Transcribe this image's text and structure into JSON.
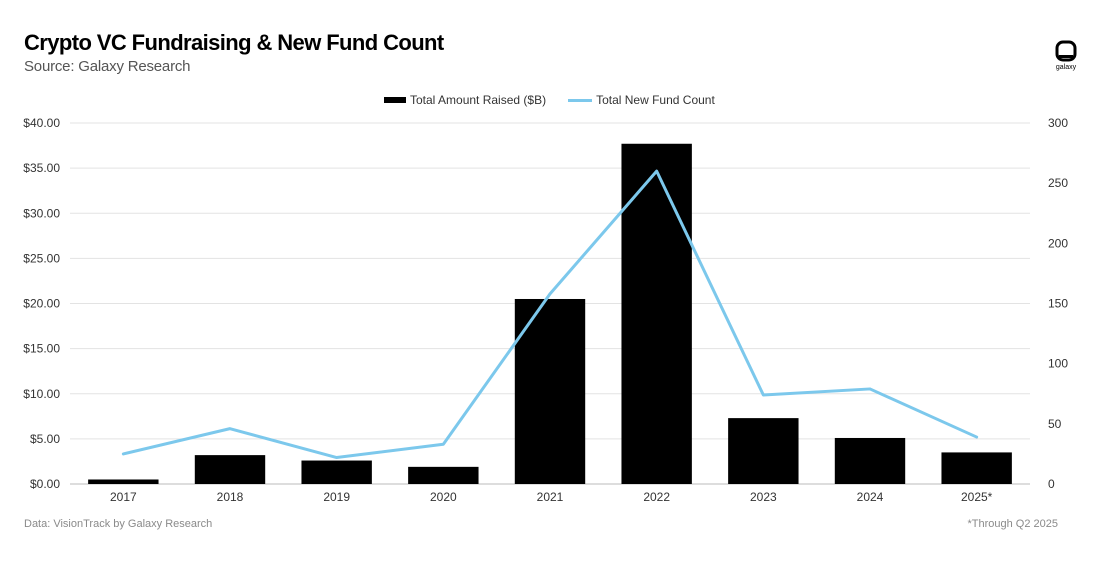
{
  "header": {
    "title": "Crypto VC Fundraising & New Fund Count",
    "subtitle": "Source: Galaxy Research",
    "logo_text": "galaxy"
  },
  "colors": {
    "bar": "#000000",
    "line": "#7cc8ec",
    "grid": "#e3e3e3"
  },
  "chart_data": {
    "type": "bar",
    "categories": [
      "2017",
      "2018",
      "2019",
      "2020",
      "2021",
      "2022",
      "2023",
      "2024",
      "2025*"
    ],
    "series": [
      {
        "name": "Total Amount Raised ($B)",
        "type": "bar",
        "axis": "left",
        "values": [
          0.5,
          3.2,
          2.6,
          1.9,
          20.5,
          37.7,
          7.3,
          5.1,
          3.5
        ]
      },
      {
        "name": "Total New Fund Count",
        "type": "line",
        "axis": "right",
        "values": [
          25,
          46,
          22,
          33,
          158,
          260,
          74,
          79,
          39
        ]
      }
    ],
    "y_left": {
      "min": 0,
      "max": 40,
      "ticks": [
        "$0.00",
        "$5.00",
        "$10.00",
        "$15.00",
        "$20.00",
        "$25.00",
        "$30.00",
        "$35.00",
        "$40.00"
      ]
    },
    "y_right": {
      "min": 0,
      "max": 300,
      "ticks": [
        "0",
        "50",
        "100",
        "150",
        "200",
        "250",
        "300"
      ]
    },
    "legend_position": "top-center",
    "grid": true
  },
  "footer": {
    "source": "Data: VisionTrack by Galaxy Research",
    "note": "*Through Q2 2025"
  }
}
